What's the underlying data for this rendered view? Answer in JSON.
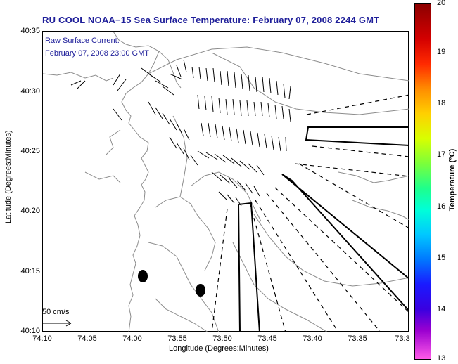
{
  "title": "RU COOL  NOAA−15  Sea Surface Temperature:  February 07, 2008 2244 GMT",
  "legend": {
    "line1": "Raw Surface Current:",
    "line2": "February 07, 2008 23:00 GMT",
    "scale_label": "50 cm/s"
  },
  "axes": {
    "ylabel": "Latitude (Degrees:Minutes)",
    "xlabel": "Longitude (Degrees:Minutes)",
    "yticks": [
      "40:35",
      "40:30",
      "40:25",
      "40:20",
      "40:15",
      "40:10"
    ],
    "xticks": [
      "74:10",
      "74:05",
      "74:00",
      "73:55",
      "73:50",
      "73:45",
      "73:40",
      "73:35",
      "73:3"
    ]
  },
  "colorbar": {
    "label": "Temperature (°C)",
    "ticks": [
      "20",
      "19",
      "18",
      "17",
      "16",
      "15",
      "14",
      "13"
    ],
    "colors": {
      "high": "#8b0000",
      "low": "#ff5ae8"
    }
  },
  "colors": {
    "title": "#1f1f9a",
    "map_lines": "#8c8c8c"
  }
}
